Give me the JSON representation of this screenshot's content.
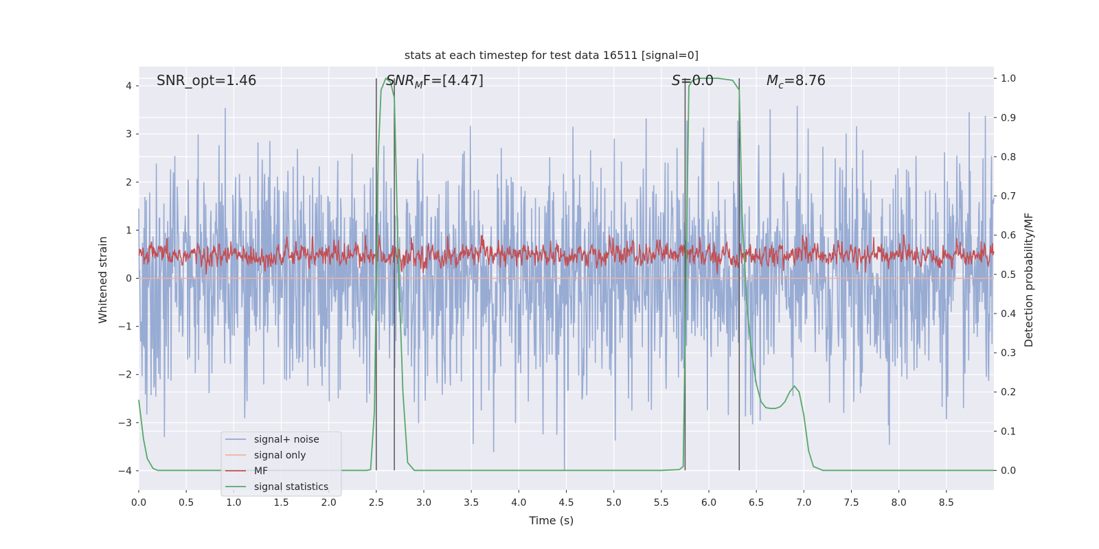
{
  "chart_data": {
    "type": "line",
    "title": "stats at each timestep for test data 16511 [signal=0]",
    "xlabel": "Time (s)",
    "ylabel_left": "Whitened strain",
    "ylabel_right": "Detection probability/MF",
    "xlim": [
      0,
      9.0
    ],
    "ylim_left": [
      -4.4,
      4.4
    ],
    "ylim_right": [
      -0.05,
      1.03
    ],
    "xticks": [
      "0.0",
      "0.5",
      "1.0",
      "1.5",
      "2.0",
      "2.5",
      "3.0",
      "3.5",
      "4.0",
      "4.5",
      "5.0",
      "5.5",
      "6.0",
      "6.5",
      "7.0",
      "7.5",
      "8.0",
      "8.5"
    ],
    "yticks_left": [
      "−4",
      "−3",
      "−2",
      "−1",
      "0",
      "1",
      "2",
      "3",
      "4"
    ],
    "yticks_right": [
      "0.0",
      "0.1",
      "0.2",
      "0.3",
      "0.4",
      "0.5",
      "0.6",
      "0.7",
      "0.8",
      "0.9",
      "1.0"
    ],
    "grid": true,
    "legend_position": "lower-left",
    "annotations": {
      "snr_opt": "SNR_opt=1.46",
      "snr_mf_main": "SNR",
      "snr_mf_sub": "M",
      "snr_mf_rest": "F=[4.47]",
      "s_main": "S",
      "s_rest": "=0.0",
      "mc_main": "M",
      "mc_sub": "c",
      "mc_rest": "=8.76"
    },
    "vertical_lines_x": [
      2.5,
      2.69,
      5.75,
      6.32
    ],
    "series": [
      {
        "name": "signal+ noise",
        "color": "#92a8d1",
        "axis": "left",
        "kind": "noise",
        "sample_rate_hz": 200,
        "amplitude_range": [
          -4.0,
          4.0
        ]
      },
      {
        "name": "signal only",
        "color": "#f0b2a0",
        "axis": "left",
        "x": [
          0,
          9.0
        ],
        "y": [
          0,
          0
        ]
      },
      {
        "name": "MF",
        "color": "#c44e52",
        "axis": "right",
        "kind": "noise",
        "sample_rate_hz": 200,
        "range": [
          0.5,
          0.6
        ]
      },
      {
        "name": "signal statistics",
        "color": "#55a868",
        "axis": "right",
        "x": [
          0.0,
          0.05,
          0.09,
          0.15,
          0.2,
          0.3,
          0.5,
          1.0,
          1.5,
          2.0,
          2.4,
          2.44,
          2.48,
          2.52,
          2.55,
          2.6,
          2.65,
          2.69,
          2.73,
          2.78,
          2.83,
          2.9,
          3.5,
          4.5,
          5.5,
          5.69,
          5.73,
          5.76,
          5.79,
          5.83,
          5.9,
          6.0,
          6.1,
          6.25,
          6.32,
          6.35,
          6.4,
          6.45,
          6.5,
          6.55,
          6.6,
          6.65,
          6.7,
          6.75,
          6.8,
          6.85,
          6.9,
          6.95,
          7.0,
          7.05,
          7.1,
          7.2,
          8.0,
          9.0
        ],
        "y": [
          0.18,
          0.08,
          0.03,
          0.005,
          0.0,
          0.0,
          0.0,
          0.0,
          0.0,
          0.0,
          0.0,
          0.002,
          0.15,
          0.8,
          0.97,
          1.0,
          0.99,
          0.95,
          0.55,
          0.2,
          0.02,
          0.0,
          0.0,
          0.0,
          0.0,
          0.002,
          0.01,
          0.5,
          0.98,
          0.995,
          1.0,
          1.0,
          1.0,
          0.995,
          0.97,
          0.65,
          0.42,
          0.3,
          0.22,
          0.175,
          0.16,
          0.158,
          0.158,
          0.162,
          0.175,
          0.2,
          0.215,
          0.2,
          0.14,
          0.05,
          0.01,
          0.0,
          0.0,
          0.0
        ]
      }
    ]
  }
}
